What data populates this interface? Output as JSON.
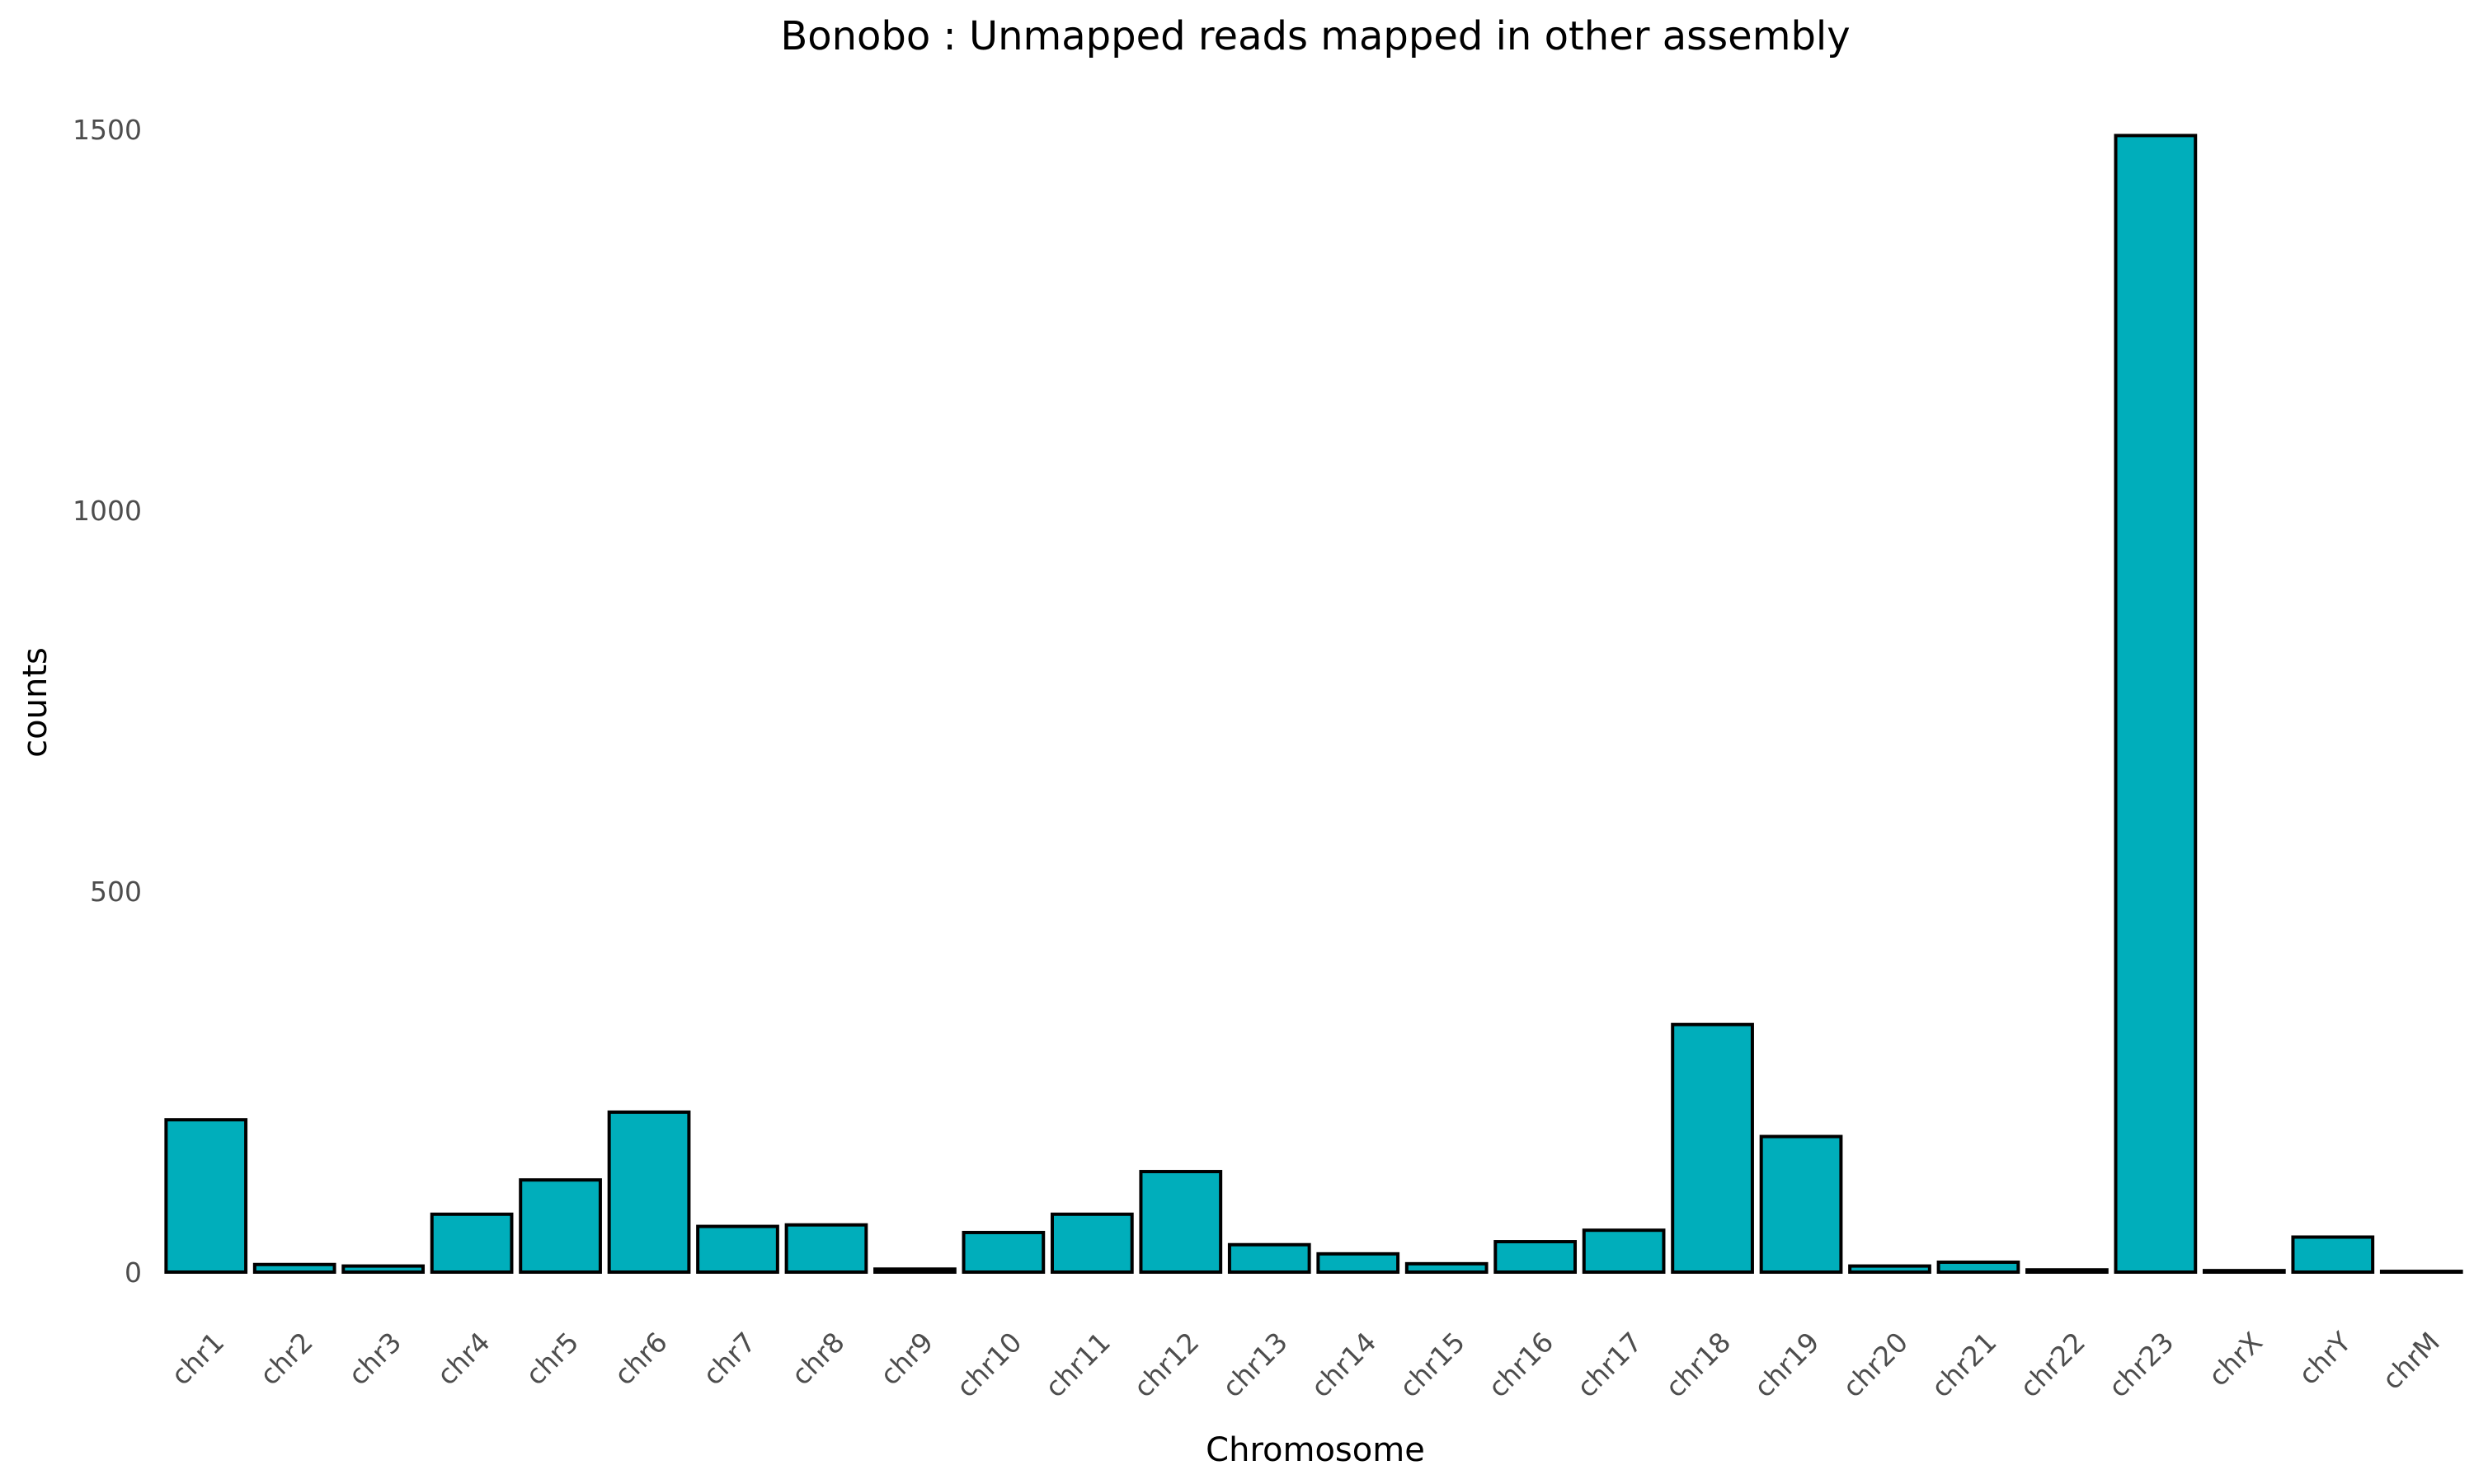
{
  "chart_data": {
    "type": "bar",
    "title": "Bonobo : Unmapped reads mapped in other assembly",
    "xlabel": "Chromosome",
    "ylabel": "counts",
    "categories": [
      "chr1",
      "chr2",
      "chr3",
      "chr4",
      "chr5",
      "chr6",
      "chr7",
      "chr8",
      "chr9",
      "chr10",
      "chr11",
      "chr12",
      "chr13",
      "chr14",
      "chr15",
      "chr16",
      "chr17",
      "chr18",
      "chr19",
      "chr20",
      "chr21",
      "chr22",
      "chr23",
      "chrX",
      "chrY",
      "chrM"
    ],
    "values": [
      200,
      10,
      8,
      76,
      121,
      210,
      60,
      62,
      4,
      52,
      76,
      132,
      36,
      24,
      11,
      40,
      55,
      325,
      178,
      8,
      13,
      3,
      1492,
      2,
      46,
      1
    ],
    "yticks": [
      0,
      500,
      1000,
      1500
    ],
    "ylim": [
      -62,
      1540
    ],
    "grid": false,
    "legend": "none",
    "bar_color": "#00AEBB",
    "bar_outline": "#000000"
  }
}
